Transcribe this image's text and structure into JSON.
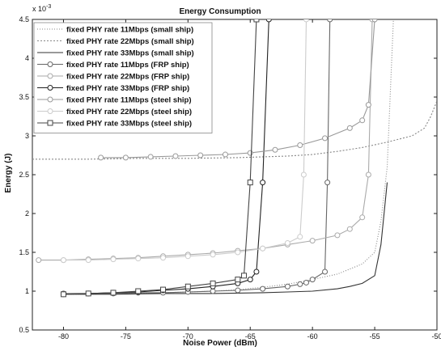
{
  "chart_data": {
    "type": "line",
    "title": "Energy Consumption",
    "xlabel": "Noise Power (dBm)",
    "ylabel": "Energy (J)",
    "y_multiplier": "x 10",
    "y_exponent": "-3",
    "xlim": [
      -82.5,
      -50
    ],
    "ylim": [
      0.5,
      4.5
    ],
    "xticks": [
      "-80",
      "-75",
      "-70",
      "-65",
      "-60",
      "-55",
      "-50"
    ],
    "yticks": [
      "0.5",
      "1",
      "1.5",
      "2",
      "2.5",
      "3",
      "3.5",
      "4",
      "4.5"
    ],
    "grid": false,
    "legend_position": "top-left",
    "series": [
      {
        "name": "fixed PHY rate 11Mbps (small ship)",
        "color": "#888888",
        "dash": "1,2",
        "marker": "none",
        "x": [
          -80,
          -78,
          -76,
          -74,
          -72,
          -70,
          -68,
          -66,
          -64,
          -62,
          -60,
          -58,
          -56,
          -55,
          -54.5,
          -54,
          -53.5
        ],
        "y": [
          0.96,
          0.96,
          0.97,
          0.97,
          0.98,
          0.99,
          1.0,
          1.02,
          1.05,
          1.09,
          1.15,
          1.22,
          1.35,
          1.5,
          1.9,
          2.6,
          4.5
        ]
      },
      {
        "name": "fixed PHY rate 22Mbps (small ship)",
        "color": "#888888",
        "dash": "2,2",
        "marker": "none",
        "x": [
          -82.5,
          -78,
          -74,
          -70,
          -66,
          -62,
          -60,
          -58,
          -56,
          -54,
          -52,
          -51,
          -50.5,
          -50
        ],
        "y": [
          2.7,
          2.7,
          2.71,
          2.71,
          2.72,
          2.74,
          2.76,
          2.8,
          2.85,
          2.92,
          3.0,
          3.1,
          3.25,
          3.45
        ]
      },
      {
        "name": "fixed PHY rate 33Mbps (small ship)",
        "color": "#333333",
        "dash": "",
        "marker": "none",
        "x": [
          -80,
          -76,
          -72,
          -68,
          -64,
          -62,
          -60,
          -58,
          -57,
          -56,
          -55,
          -54.5,
          -54
        ],
        "y": [
          0.96,
          0.96,
          0.97,
          0.97,
          0.98,
          0.99,
          1.0,
          1.03,
          1.06,
          1.1,
          1.2,
          1.6,
          2.4
        ]
      },
      {
        "name": "fixed PHY rate 11Mbps (FRP ship)",
        "color": "#666666",
        "dash": "",
        "marker": "circle",
        "x": [
          -80,
          -78,
          -76,
          -74,
          -72,
          -70,
          -68,
          -66,
          -64,
          -62,
          -61,
          -60.5,
          -60,
          -59,
          -58.8,
          -58.6
        ],
        "y": [
          0.97,
          0.97,
          0.97,
          0.98,
          0.98,
          0.99,
          1.0,
          1.01,
          1.03,
          1.06,
          1.09,
          1.11,
          1.15,
          1.25,
          2.4,
          4.5
        ]
      },
      {
        "name": "fixed PHY rate 22Mbps (FRP ship)",
        "color": "#aaaaaa",
        "dash": "",
        "marker": "circle",
        "x": [
          -82,
          -80,
          -78,
          -76,
          -74,
          -72,
          -70,
          -68,
          -66,
          -64,
          -62,
          -60,
          -58,
          -57,
          -56,
          -55.5,
          -55.2
        ],
        "y": [
          1.4,
          1.4,
          1.41,
          1.42,
          1.43,
          1.45,
          1.47,
          1.49,
          1.52,
          1.55,
          1.6,
          1.65,
          1.72,
          1.8,
          1.95,
          2.5,
          4.5
        ]
      },
      {
        "name": "fixed PHY rate 33Mbps (FRP ship)",
        "color": "#222222",
        "dash": "",
        "marker": "circle",
        "x": [
          -80,
          -78,
          -76,
          -74,
          -72,
          -70,
          -68,
          -66,
          -65,
          -64.5,
          -64,
          -63.5
        ],
        "y": [
          0.96,
          0.97,
          0.98,
          0.99,
          1.01,
          1.03,
          1.06,
          1.1,
          1.15,
          1.25,
          2.4,
          4.5
        ]
      },
      {
        "name": "fixed PHY rate 11Mbps (steel ship)",
        "color": "#999999",
        "dash": "",
        "marker": "circle",
        "x": [
          -77,
          -75,
          -73,
          -71,
          -69,
          -67,
          -65,
          -63,
          -61,
          -59,
          -57,
          -56,
          -55.5,
          -55
        ],
        "y": [
          2.72,
          2.72,
          2.73,
          2.74,
          2.75,
          2.76,
          2.78,
          2.82,
          2.88,
          2.97,
          3.1,
          3.2,
          3.4,
          4.5
        ]
      },
      {
        "name": "fixed PHY rate 22Mbps (steel ship)",
        "color": "#cccccc",
        "dash": "",
        "marker": "circle",
        "x": [
          -80,
          -78,
          -76,
          -74,
          -72,
          -70,
          -68,
          -66,
          -64,
          -62,
          -61,
          -60.7,
          -60.5
        ],
        "y": [
          1.4,
          1.4,
          1.41,
          1.42,
          1.43,
          1.45,
          1.47,
          1.5,
          1.55,
          1.62,
          1.7,
          2.5,
          4.5
        ]
      },
      {
        "name": "fixed PHY rate 33Mbps (steel ship)",
        "color": "#444444",
        "dash": "",
        "marker": "square",
        "x": [
          -80,
          -78,
          -76,
          -74,
          -72,
          -70,
          -68,
          -66,
          -65.5,
          -65,
          -64.5
        ],
        "y": [
          0.96,
          0.97,
          0.98,
          1.0,
          1.02,
          1.06,
          1.1,
          1.15,
          1.2,
          2.4,
          4.5
        ]
      }
    ]
  }
}
